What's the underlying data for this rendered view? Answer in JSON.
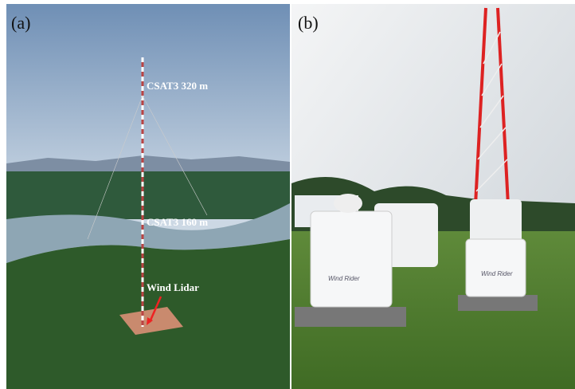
{
  "panels": [
    {
      "label": "(a)",
      "annotations": [
        "CSAT3 320 m",
        "CSAT3 160 m",
        "Wind Lidar"
      ]
    },
    {
      "label": "(b)",
      "device_labels": [
        "Wind Rider"
      ]
    }
  ]
}
